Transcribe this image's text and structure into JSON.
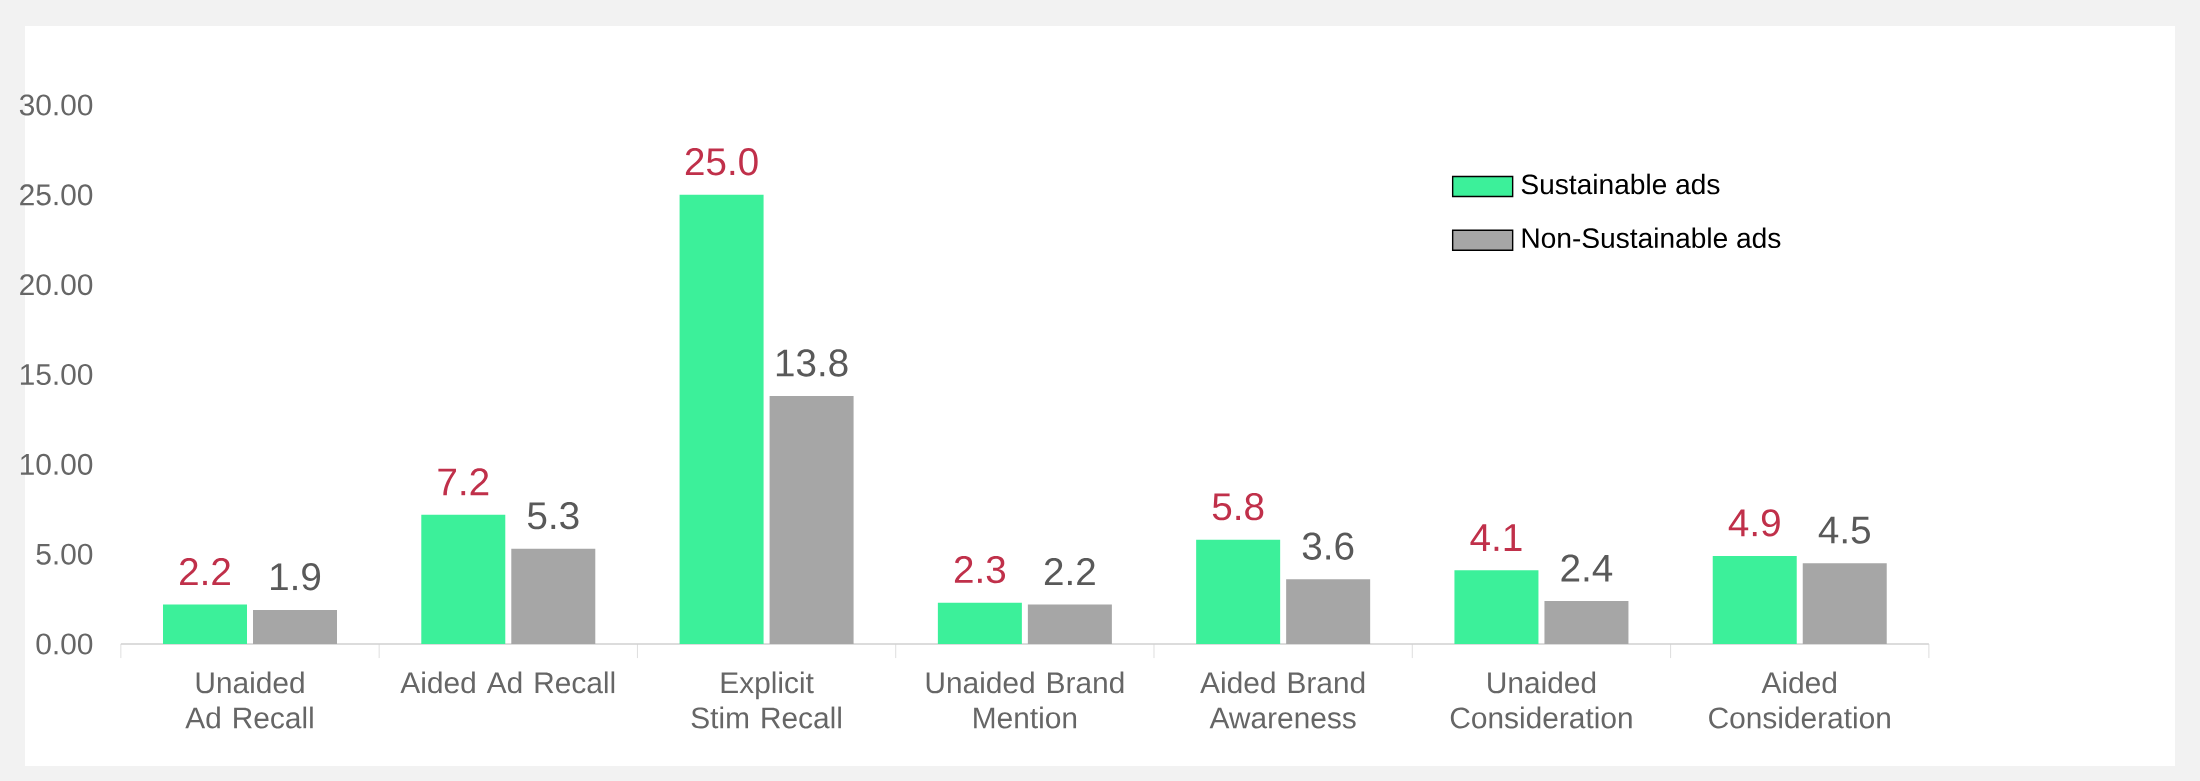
{
  "chart_data": {
    "type": "bar",
    "categories": [
      "Unaided Ad Recall",
      "Aided Ad Recall",
      "Explicit Stim Recall",
      "Unaided Brand Mention",
      "Aided Brand Awareness",
      "Unaided Consideration",
      "Aided Consideration"
    ],
    "series": [
      {
        "name": "Sustainable ads",
        "color": "#3cf09a",
        "values": [
          2.2,
          7.2,
          25.0,
          2.3,
          5.8,
          4.1,
          4.9
        ],
        "value_labels": [
          "2.2",
          "7.2",
          "25.0",
          "2.3",
          "5.8",
          "4.1",
          "4.9"
        ]
      },
      {
        "name": "Non-Sustainable ads",
        "color": "#a6a6a6",
        "values": [
          1.9,
          5.3,
          13.8,
          2.2,
          3.6,
          2.4,
          4.5
        ],
        "value_labels": [
          "1.9",
          "5.3",
          "13.8",
          "2.2",
          "3.6",
          "2.4",
          "4.5"
        ]
      }
    ],
    "ylim": [
      0,
      30
    ],
    "yticks": [
      {
        "value": 0,
        "label": "0.00"
      },
      {
        "value": 5,
        "label": "5.00"
      },
      {
        "value": 10,
        "label": "10.00"
      },
      {
        "value": 15,
        "label": "15.00"
      },
      {
        "value": 20,
        "label": "20.00"
      },
      {
        "value": 25,
        "label": "25.00"
      },
      {
        "value": 30,
        "label": "30.00"
      }
    ],
    "legend": "top right"
  }
}
